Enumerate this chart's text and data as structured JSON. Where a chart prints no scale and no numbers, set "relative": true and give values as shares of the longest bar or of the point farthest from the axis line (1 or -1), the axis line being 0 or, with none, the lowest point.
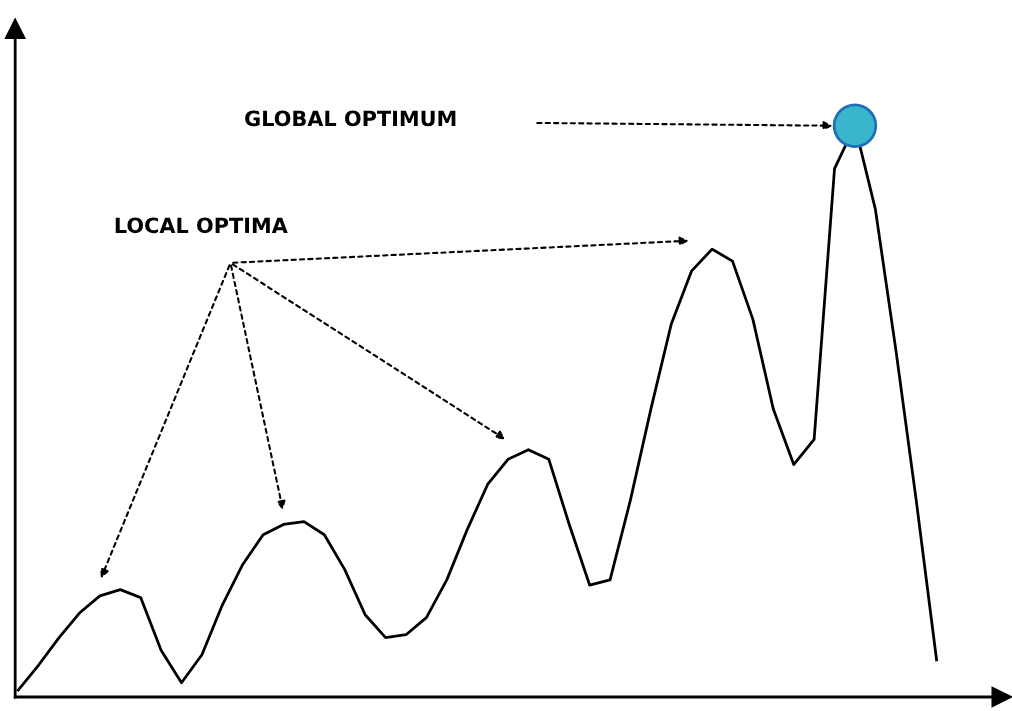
{
  "chart_data": {
    "type": "line",
    "relative": true,
    "categories": [
      null,
      null,
      null,
      null,
      null,
      null,
      null,
      null,
      null,
      null,
      null,
      null,
      null,
      null,
      null,
      null,
      null,
      null,
      null,
      null,
      null,
      null,
      null,
      null,
      null,
      null,
      null,
      null,
      null,
      null,
      null,
      null,
      null,
      null,
      null,
      null,
      null,
      null,
      null,
      null,
      null,
      null,
      null,
      null,
      null,
      null
    ],
    "series": [
      {
        "color": "#000000",
        "values": [
          0.012,
          0.056,
          0.104,
          0.147,
          0.177,
          0.188,
          0.174,
          0.082,
          0.025,
          0.074,
          0.161,
          0.232,
          0.284,
          0.302,
          0.307,
          0.284,
          0.223,
          0.144,
          0.104,
          0.109,
          0.139,
          0.205,
          0.293,
          0.372,
          0.416,
          0.433,
          0.416,
          0.302,
          0.196,
          0.205,
          0.345,
          0.504,
          0.653,
          0.746,
          0.784,
          0.763,
          0.661,
          0.504,
          0.407,
          0.451,
          0.925,
          1.0,
          0.854,
          0.609,
          0.345,
          0.065
        ]
      }
    ],
    "annotations": [
      "GLOBAL OPTIMUM",
      "LOCAL OPTIMA"
    ],
    "marker": "none",
    "line_style": "solid"
  }
}
